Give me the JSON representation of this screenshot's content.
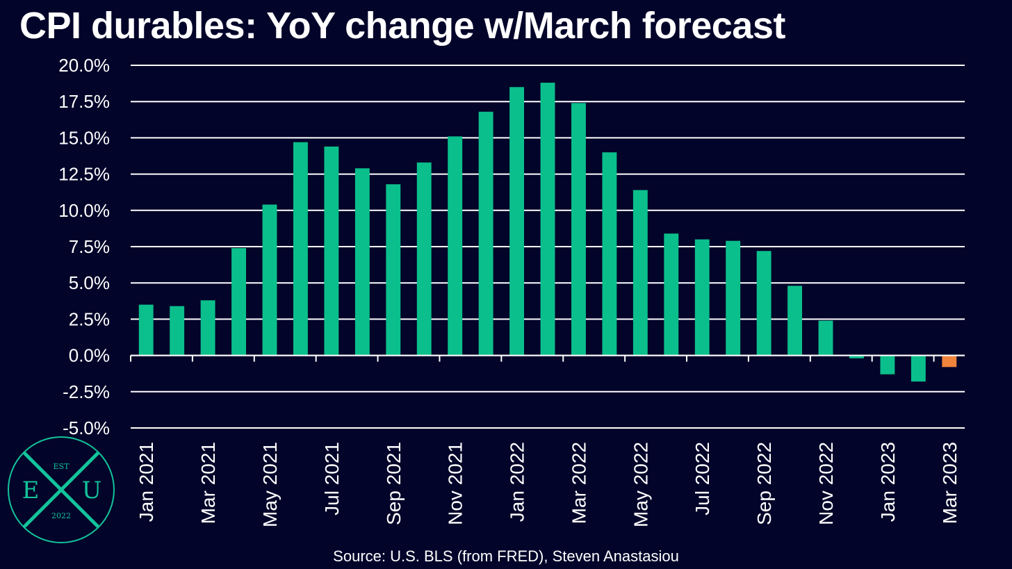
{
  "title": "CPI durables: YoY change w/March forecast",
  "source": "Source: U.S. BLS (from FRED), Steven Anastasiou",
  "logo": {
    "top_text": "EST",
    "left_letter": "E",
    "middle_letter": "X",
    "right_letter": "U",
    "bottom_text": "2022"
  },
  "colors": {
    "background": "#03042a",
    "actual": "#0bbf8c",
    "forecast": "#f0843c",
    "grid": "#ffffff",
    "text": "#ffffff",
    "logo": "#13c49a"
  },
  "chart_data": {
    "type": "bar",
    "title": "CPI durables: YoY change w/March forecast",
    "xlabel": "",
    "ylabel": "",
    "ylim": [
      -5.0,
      20.0
    ],
    "yticks": [
      "20.0%",
      "17.5%",
      "15.0%",
      "12.5%",
      "10.0%",
      "7.5%",
      "5.0%",
      "2.5%",
      "0.0%",
      "-2.5%",
      "-5.0%"
    ],
    "ytick_values": [
      20.0,
      17.5,
      15.0,
      12.5,
      10.0,
      7.5,
      5.0,
      2.5,
      0.0,
      -2.5,
      -5.0
    ],
    "grid": true,
    "legend": "none",
    "categories": [
      "Jan 2021",
      "Feb 2021",
      "Mar 2021",
      "Apr 2021",
      "May 2021",
      "Jun 2021",
      "Jul 2021",
      "Aug 2021",
      "Sep 2021",
      "Oct 2021",
      "Nov 2021",
      "Dec 2021",
      "Jan 2022",
      "Feb 2022",
      "Mar 2022",
      "Apr 2022",
      "May 2022",
      "Jun 2022",
      "Jul 2022",
      "Aug 2022",
      "Sep 2022",
      "Oct 2022",
      "Nov 2022",
      "Dec 2022",
      "Jan 2023",
      "Feb 2023",
      "Mar 2023"
    ],
    "xtick_labels": [
      "Jan 2021",
      "Mar 2021",
      "May 2021",
      "Jul 2021",
      "Sep 2021",
      "Nov 2021",
      "Jan 2022",
      "Mar 2022",
      "May 2022",
      "Jul 2022",
      "Sep 2022",
      "Nov 2022",
      "Jan 2023",
      "Mar 2023"
    ],
    "values": [
      3.5,
      3.4,
      3.8,
      7.4,
      10.4,
      14.7,
      14.4,
      12.9,
      11.8,
      13.3,
      15.1,
      16.8,
      18.5,
      18.8,
      17.4,
      14.0,
      11.4,
      8.4,
      8.0,
      7.9,
      7.2,
      4.8,
      2.4,
      -0.2,
      -1.3,
      -1.8,
      -0.8
    ],
    "forecast_flags": [
      false,
      false,
      false,
      false,
      false,
      false,
      false,
      false,
      false,
      false,
      false,
      false,
      false,
      false,
      false,
      false,
      false,
      false,
      false,
      false,
      false,
      false,
      false,
      false,
      false,
      false,
      true
    ]
  }
}
